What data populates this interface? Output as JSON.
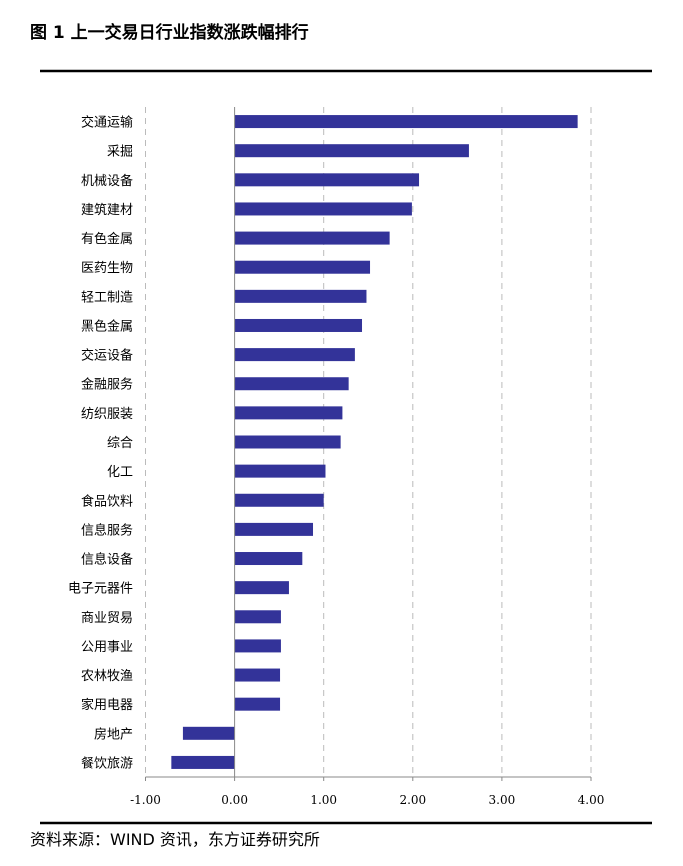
{
  "chart_data": {
    "type": "bar",
    "orientation": "horizontal",
    "title": "图 1  上一交易日行业指数涨跌幅排行",
    "categories": [
      "交通运输",
      "采掘",
      "机械设备",
      "建筑建材",
      "有色金属",
      "医药生物",
      "轻工制造",
      "黑色金属",
      "交运设备",
      "金融服务",
      "纺织服装",
      "综合",
      "化工",
      "食品饮料",
      "信息服务",
      "信息设备",
      "电子元器件",
      "商业贸易",
      "公用事业",
      "农林牧渔",
      "家用电器",
      "房地产",
      "餐饮旅游"
    ],
    "values": [
      3.85,
      2.63,
      2.07,
      1.99,
      1.74,
      1.52,
      1.48,
      1.43,
      1.35,
      1.28,
      1.21,
      1.19,
      1.02,
      1.0,
      0.88,
      0.76,
      0.61,
      0.52,
      0.52,
      0.51,
      0.51,
      -0.58,
      -0.71
    ],
    "xlim": [
      -1,
      4
    ],
    "xticks": [
      "-1.00",
      "0.00",
      "1.00",
      "2.00",
      "3.00",
      "4.00"
    ],
    "grid": "vertical dashed",
    "bar_color": "#333399",
    "source": "资料来源：WIND 资讯，东方证券研究所"
  }
}
